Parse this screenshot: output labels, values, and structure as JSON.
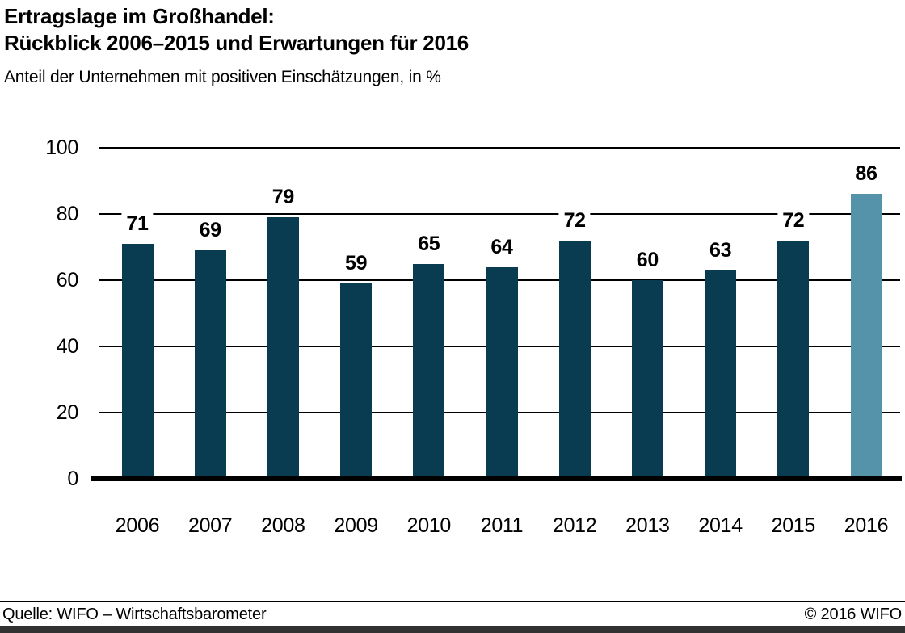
{
  "header": {
    "title_line1": "Ertragslage im Großhandel:",
    "title_line2": "Rückblick 2006–2015 und Erwartungen für 2016",
    "subtitle": "Anteil der Unternehmen mit positiven Einschätzungen, in %"
  },
  "chart_data": {
    "type": "bar",
    "title": "Ertragslage im Großhandel: Rückblick 2006–2015 und Erwartungen für 2016",
    "subtitle": "Anteil der Unternehmen mit positiven Einschätzungen, in %",
    "categories": [
      "2006",
      "2007",
      "2008",
      "2009",
      "2010",
      "2011",
      "2012",
      "2013",
      "2014",
      "2015",
      "2016"
    ],
    "values": [
      71,
      69,
      79,
      59,
      65,
      64,
      72,
      60,
      63,
      72,
      86
    ],
    "highlight_index": 10,
    "highlight_category": "2016",
    "ylim": [
      0,
      100
    ],
    "yticks": [
      0,
      20,
      40,
      60,
      80,
      100
    ],
    "grid": true,
    "data_labels": true,
    "legend": false,
    "colors": {
      "bar": "#093c51",
      "highlight_bar": "#5493a9",
      "gridline": "#000000",
      "axis": "#000000",
      "text": "#000000"
    }
  },
  "footer": {
    "source": "Quelle: WIFO – Wirtschaftsbarometer",
    "copyright": "© 2016 WIFO",
    "accent_bar_color": "#323232"
  }
}
